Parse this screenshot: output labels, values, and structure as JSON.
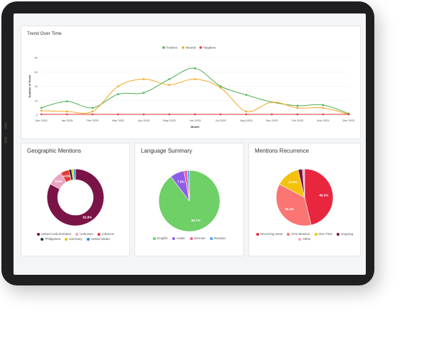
{
  "colors": {
    "positive": "#4caf50",
    "neutral": "#f5a623",
    "negative": "#e53935"
  },
  "chart_data": [
    {
      "type": "line",
      "title": "Trend Over Time",
      "xlabel": "Month",
      "ylabel": "Number of Posts",
      "ylim": [
        0,
        80
      ],
      "yticks": [
        0,
        20,
        40,
        60,
        80
      ],
      "categories": [
        "Dec 2024",
        "Jan 2025",
        "Feb 2025",
        "Mar 2025",
        "Apr 2025",
        "May 2025",
        "Jun 2025",
        "Jul 2025",
        "Aug 2025",
        "Sep 2025",
        "Oct 2025",
        "Nov 2025",
        "Dec 2025"
      ],
      "legend_position": "top",
      "series": [
        {
          "name": "Positive",
          "color": "#4caf50",
          "values": [
            10,
            19,
            10,
            29,
            31,
            50,
            65,
            40,
            28,
            18,
            13,
            14,
            2
          ]
        },
        {
          "name": "Neutral",
          "color": "#f5a623",
          "values": [
            6,
            5,
            5,
            40,
            50,
            42,
            50,
            38,
            5,
            18,
            10,
            10,
            1
          ]
        },
        {
          "name": "Negative",
          "color": "#e53935",
          "values": [
            1,
            1,
            1,
            1,
            1,
            1,
            1,
            1,
            1,
            1,
            1,
            1,
            1
          ]
        }
      ]
    },
    {
      "type": "pie",
      "donut": true,
      "title": "Geographic Mentions",
      "legend_position": "bottom",
      "slices": [
        {
          "name": "United Arab Emirates",
          "value": 82.8,
          "label": "82.8%",
          "color": "#7a1446"
        },
        {
          "name": "Unknown",
          "value": 8.6,
          "label": "8.6%",
          "color": "#e8a5c0"
        },
        {
          "name": "Lebanon",
          "value": 4.8,
          "label": "4.8%",
          "color": "#e53935"
        },
        {
          "name": "Philippines",
          "value": 1.6,
          "label": "",
          "color": "#263238"
        },
        {
          "name": "Germany",
          "value": 1.2,
          "label": "",
          "color": "#f4c20d"
        },
        {
          "name": "United States",
          "value": 1.0,
          "label": "",
          "color": "#1e88e5"
        }
      ]
    },
    {
      "type": "pie",
      "title": "Language Summary",
      "legend_position": "bottom",
      "slices": [
        {
          "name": "English",
          "value": 89.7,
          "label": "89.7%",
          "color": "#6ed067"
        },
        {
          "name": "Arabic",
          "value": 7.5,
          "label": "7.5%",
          "color": "#8e5bea"
        },
        {
          "name": "German",
          "value": 1.8,
          "label": "",
          "color": "#f06292"
        },
        {
          "name": "Russian",
          "value": 1.0,
          "label": "",
          "color": "#42a5f5"
        }
      ]
    },
    {
      "type": "pie",
      "title": "Mentions Recurrence",
      "legend_position": "bottom",
      "slices": [
        {
          "name": "Recurring Issue",
          "value": 46.3,
          "label": "46.3%",
          "color": "#e8263e"
        },
        {
          "name": "First Mention",
          "value": 36.4,
          "label": "36.4%",
          "color": "#fb7573"
        },
        {
          "name": "One Time",
          "value": 13.6,
          "label": "13.6%",
          "color": "#f4c20d"
        },
        {
          "name": "Ongoing",
          "value": 2.5,
          "label": "",
          "color": "#7a1446"
        },
        {
          "name": "Other",
          "value": 1.2,
          "label": "",
          "color": "#f8a5c2"
        }
      ]
    }
  ]
}
